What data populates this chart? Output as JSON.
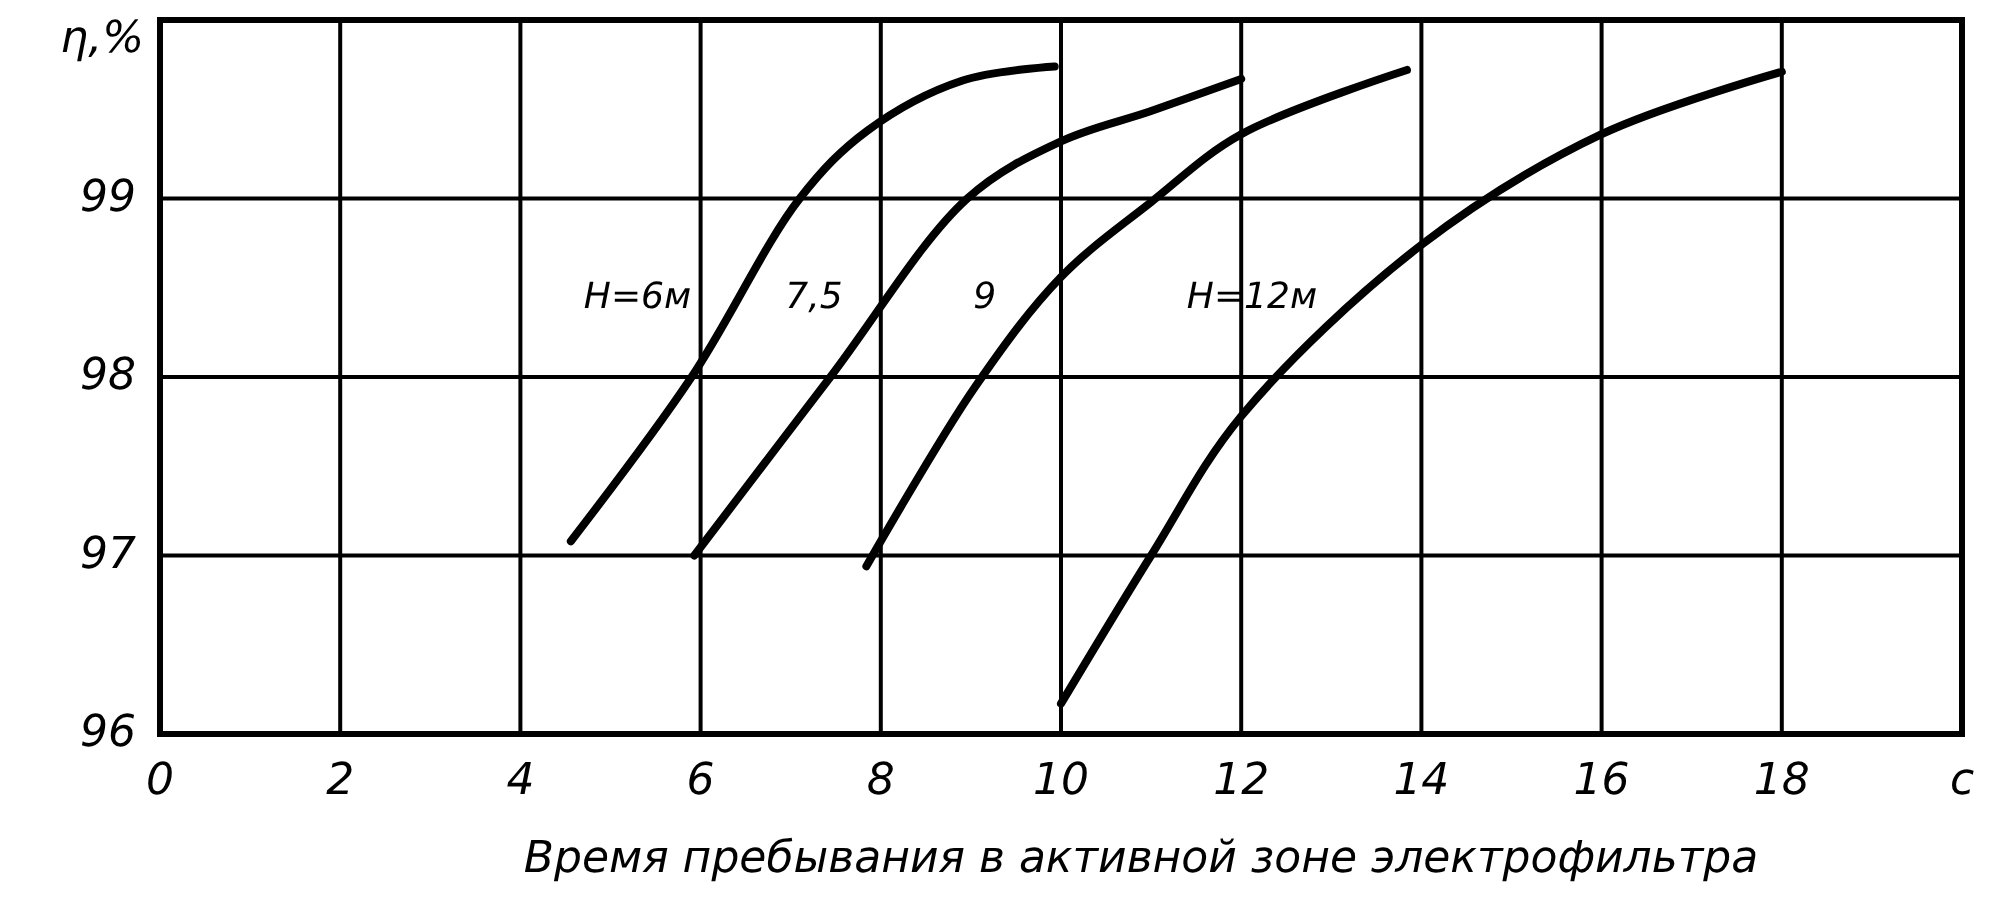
{
  "chart_data": {
    "type": "line",
    "xlabel": "Время пребывания в активной зоне электрофильтра",
    "ylabel": "η,%",
    "xlim": [
      0,
      20
    ],
    "ylim": [
      96,
      100
    ],
    "xticks": [
      0,
      2,
      4,
      6,
      8,
      10,
      12,
      14,
      16,
      18,
      {
        "value": 20,
        "label": "c"
      }
    ],
    "yticks": [
      96,
      97,
      98,
      99,
      {
        "value": 100,
        "label": null
      }
    ],
    "grid": true,
    "marker": "none",
    "line_style": "solid",
    "series": [
      {
        "name": "H=6м",
        "color": "#000000",
        "x": [
          4.56,
          5.9,
          7.1,
          7.85,
          8.9,
          9.93
        ],
        "values": [
          97.08,
          98.0,
          99.0,
          99.38,
          99.66,
          99.74
        ]
      },
      {
        "name": "7,5",
        "color": "#000000",
        "x": [
          5.93,
          7.44,
          8.96,
          10,
          11,
          12
        ],
        "values": [
          97.0,
          98.0,
          99.0,
          99.32,
          99.49,
          99.67
        ]
      },
      {
        "name": "9",
        "color": "#000000",
        "x": [
          7.84,
          9.04,
          10,
          11,
          12,
          13.84
        ],
        "values": [
          96.94,
          97.94,
          98.56,
          98.98,
          99.36,
          99.72
        ]
      },
      {
        "name": "H=12м",
        "color": "#000000",
        "x": [
          10,
          11,
          12,
          14,
          16,
          18
        ],
        "values": [
          96.17,
          97.0,
          97.78,
          98.74,
          99.36,
          99.71
        ]
      }
    ]
  }
}
